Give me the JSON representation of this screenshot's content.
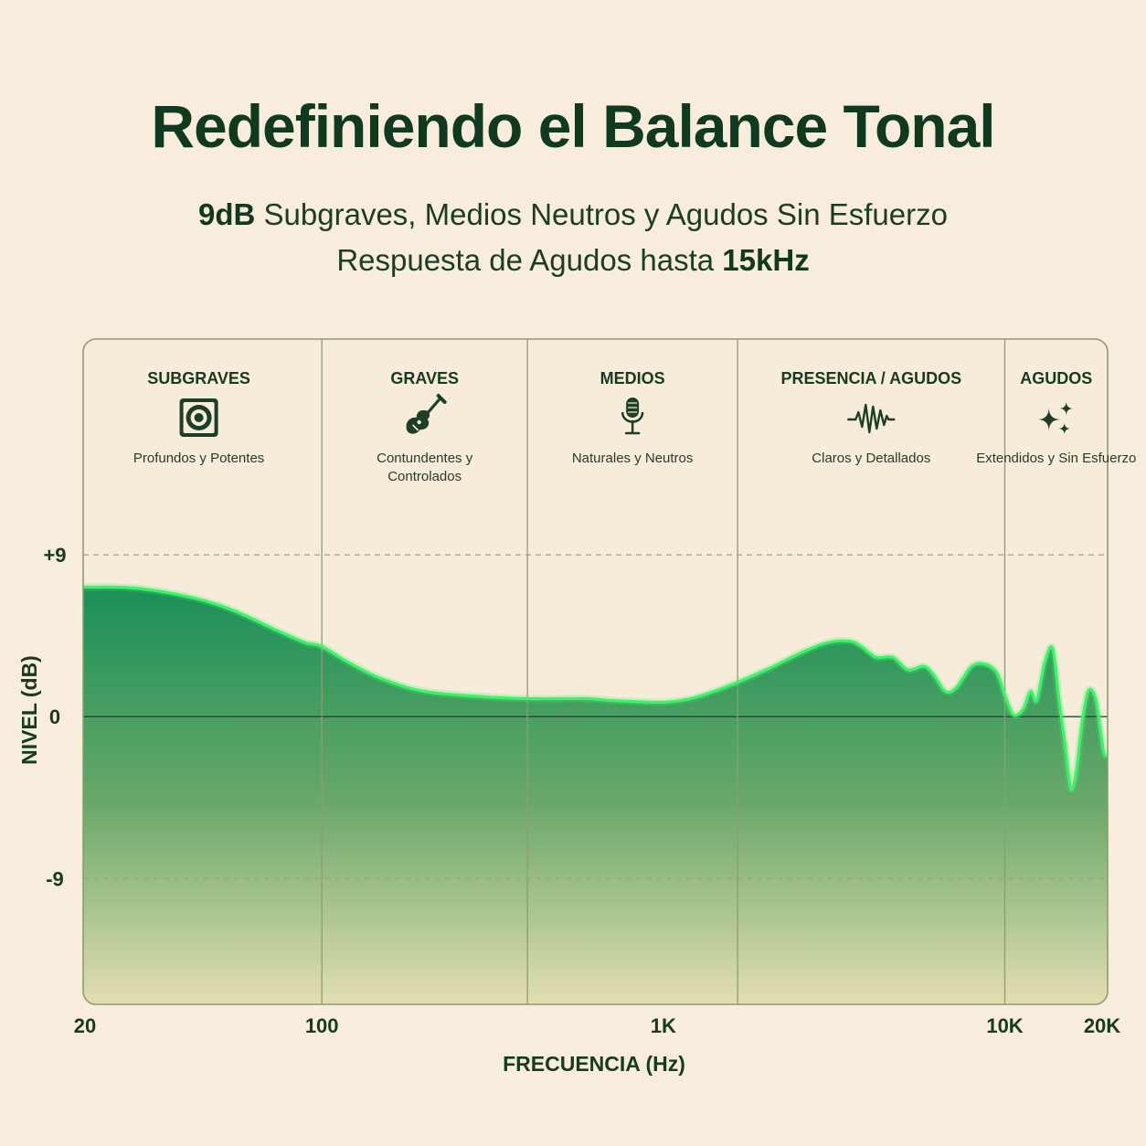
{
  "header": {
    "title": "Redefiniendo el Balance Tonal",
    "subtitle1": {
      "strong": "9dB",
      "rest": " Subgraves, Medios Neutros y Agudos Sin Esfuerzo"
    },
    "subtitle2": {
      "rest": "Respuesta de Agudos hasta ",
      "strong": "15kHz"
    }
  },
  "colors": {
    "curve": "#3ef26a",
    "fill_top": "#1a9058",
    "fill_bottom": "#efe3b8",
    "text": "#123a22",
    "background": "#f8ecdc"
  },
  "chart_data": {
    "type": "area",
    "xscale": "log",
    "xlim": [
      20,
      20000
    ],
    "ylim": [
      -16,
      21
    ],
    "xlabel": "FRECUENCIA (Hz)",
    "ylabel": "NIVEL (dB)",
    "xticks": [
      {
        "value": 20,
        "label": "20"
      },
      {
        "value": 100,
        "label": "100"
      },
      {
        "value": 1000,
        "label": "1K"
      },
      {
        "value": 10000,
        "label": "10K"
      },
      {
        "value": 20000,
        "label": "20K"
      }
    ],
    "yticks": [
      {
        "value": 9,
        "label": "+9",
        "style": "dashed"
      },
      {
        "value": 0,
        "label": "0",
        "style": "solid"
      },
      {
        "value": -9,
        "label": "-9",
        "style": "dashed"
      }
    ],
    "band_dividers": [
      100,
      400,
      1650,
      10000
    ],
    "bands": [
      {
        "title": "SUBGRAVES",
        "icon": "speaker-icon",
        "description": [
          "Profundos y Potentes"
        ]
      },
      {
        "title": "GRAVES",
        "icon": "guitar-icon",
        "description": [
          "Contundentes y",
          "Controlados"
        ]
      },
      {
        "title": "MEDIOS",
        "icon": "microphone-icon",
        "description": [
          "Naturales y Neutros"
        ]
      },
      {
        "title": "PRESENCIA / AGUDOS",
        "icon": "waveform-icon",
        "description": [
          "Claros y Detallados"
        ]
      },
      {
        "title": "AGUDOS",
        "icon": "sparkle-icon",
        "description": [
          "Extendidos y Sin Esfuerzo"
        ]
      }
    ],
    "series": [
      {
        "x": [
          20,
          25,
          30,
          40,
          50,
          60,
          70,
          80,
          90,
          100,
          120,
          150,
          200,
          300,
          400,
          500,
          600,
          700,
          800,
          1000,
          1200,
          1500,
          2000,
          2500,
          3000,
          3500,
          3800,
          4200,
          4700,
          5200,
          5800,
          6200,
          6700,
          7200,
          8000,
          8800,
          9500,
          10000,
          10600,
          11300,
          11900,
          12400,
          13100,
          13800,
          14400,
          15000,
          15600,
          16200,
          16800,
          17400,
          17900,
          18500,
          19000,
          19500,
          20000
        ],
        "y": [
          7.2,
          7.2,
          7.1,
          6.7,
          6.2,
          5.6,
          5.0,
          4.5,
          4.1,
          3.9,
          3.0,
          2.1,
          1.4,
          1.1,
          1.0,
          1.0,
          1.0,
          0.9,
          0.85,
          0.8,
          1.0,
          1.6,
          2.6,
          3.5,
          4.1,
          4.2,
          3.9,
          3.3,
          3.3,
          2.6,
          2.8,
          2.3,
          1.4,
          1.6,
          2.8,
          2.9,
          2.4,
          1.2,
          0.1,
          0.4,
          1.4,
          0.9,
          3.0,
          3.8,
          1.0,
          -1.5,
          -4.0,
          -3.0,
          -0.5,
          1.2,
          1.5,
          0.9,
          -0.6,
          -2.0,
          -2.2
        ]
      }
    ]
  }
}
